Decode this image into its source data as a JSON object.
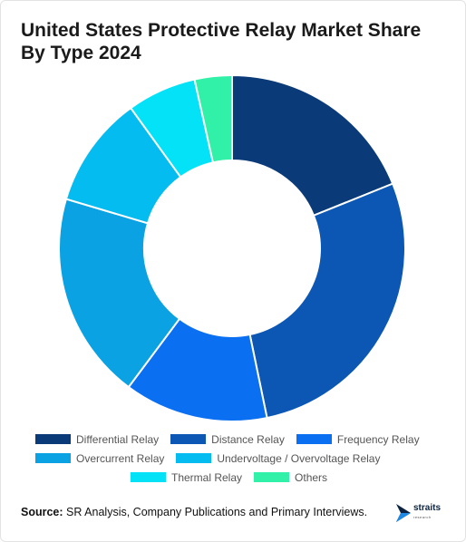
{
  "chart_data": {
    "type": "pie",
    "title": "United States Protective Relay Market Share By Type 2024",
    "categories": [
      "Differential Relay",
      "Distance Relay",
      "Frequency Relay",
      "Overcurrent Relay",
      "Undervoltage / Overvoltage Relay",
      "Thermal Relay",
      "Others"
    ],
    "values": [
      19,
      28,
      13.5,
      19.5,
      10.5,
      6.5,
      3.5
    ],
    "colors": [
      "#0a3b78",
      "#0b57b3",
      "#0a6ff0",
      "#0aa2e2",
      "#05bcf0",
      "#04e2f7",
      "#31f0a7"
    ],
    "legend_position": "bottom",
    "donut": true
  },
  "source": {
    "label": "Source:",
    "text": "SR Analysis, Company Publications and Primary Interviews."
  },
  "logo": {
    "name": "straits",
    "sub": "research"
  }
}
